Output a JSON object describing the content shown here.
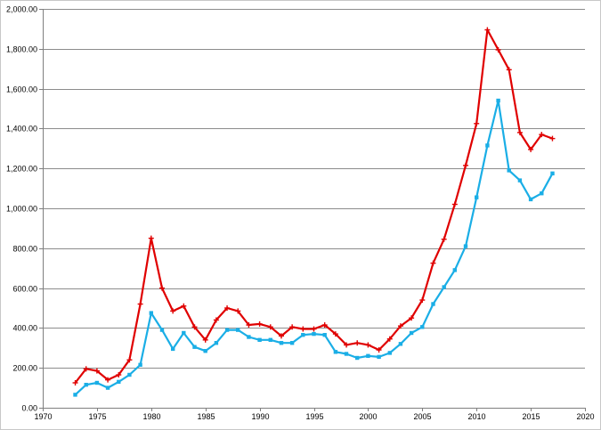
{
  "chart_data": {
    "type": "scatter",
    "title": "",
    "xlabel": "",
    "ylabel": "",
    "xlim": [
      1970,
      2020
    ],
    "ylim": [
      0,
      2000
    ],
    "xticks": [
      1970,
      1975,
      1980,
      1985,
      1990,
      1995,
      2000,
      2005,
      2010,
      2015,
      2020
    ],
    "yticks": [
      0,
      200,
      400,
      600,
      800,
      1000,
      1200,
      1400,
      1600,
      1800,
      2000
    ],
    "ytick_labels": [
      "0.00",
      "200.00",
      "400.00",
      "600.00",
      "800.00",
      "1,000.00",
      "1,200.00",
      "1,400.00",
      "1,600.00",
      "1,800.00",
      "2,000.00"
    ],
    "grid": "horizontal",
    "legend": "none",
    "series": [
      {
        "color": "#e00000",
        "marker": "plus",
        "x": [
          1973,
          1974,
          1975,
          1976,
          1977,
          1978,
          1979,
          1980,
          1981,
          1982,
          1983,
          1984,
          1985,
          1986,
          1987,
          1988,
          1989,
          1990,
          1991,
          1992,
          1993,
          1994,
          1995,
          1996,
          1997,
          1998,
          1999,
          2000,
          2001,
          2002,
          2003,
          2004,
          2005,
          2006,
          2007,
          2008,
          2009,
          2010,
          2011,
          2012,
          2013,
          2014,
          2015,
          2016,
          2017
        ],
        "y": [
          125,
          195,
          185,
          140,
          165,
          240,
          520,
          850,
          600,
          485,
          510,
          405,
          340,
          440,
          500,
          485,
          415,
          420,
          405,
          360,
          405,
          395,
          395,
          415,
          370,
          315,
          325,
          315,
          290,
          345,
          410,
          450,
          540,
          725,
          845,
          1020,
          1215,
          1425,
          1895,
          1795,
          1695,
          1380,
          1295,
          1370,
          1350
        ]
      },
      {
        "color": "#1aaee6",
        "marker": "square",
        "x": [
          1973,
          1974,
          1975,
          1976,
          1977,
          1978,
          1979,
          1980,
          1981,
          1982,
          1983,
          1984,
          1985,
          1986,
          1987,
          1988,
          1989,
          1990,
          1991,
          1992,
          1993,
          1994,
          1995,
          1996,
          1997,
          1998,
          1999,
          2000,
          2001,
          2002,
          2003,
          2004,
          2005,
          2006,
          2007,
          2008,
          2009,
          2010,
          2011,
          2012,
          2013,
          2014,
          2015,
          2016,
          2017
        ],
        "y": [
          65,
          115,
          125,
          100,
          130,
          165,
          215,
          475,
          390,
          295,
          375,
          305,
          285,
          325,
          390,
          390,
          355,
          340,
          340,
          325,
          325,
          365,
          370,
          365,
          280,
          270,
          250,
          260,
          255,
          275,
          320,
          375,
          405,
          520,
          605,
          690,
          810,
          1055,
          1315,
          1540,
          1190,
          1140,
          1045,
          1075,
          1175
        ]
      }
    ]
  }
}
